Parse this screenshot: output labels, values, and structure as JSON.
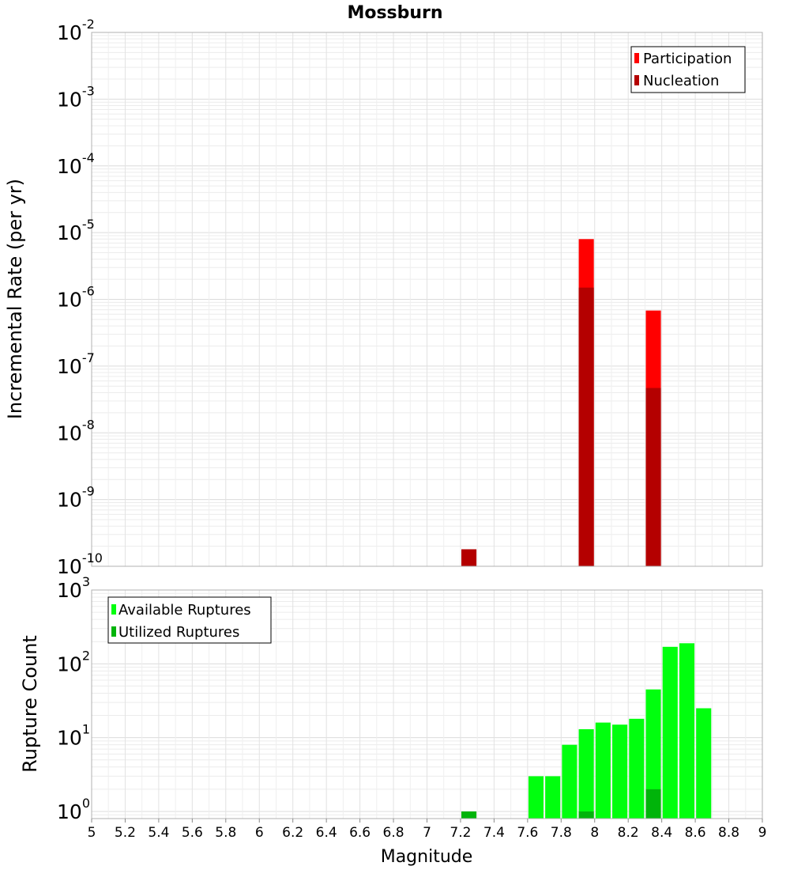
{
  "chart_data": [
    {
      "type": "bar",
      "title": "Mossburn",
      "ylabel": "Incremental Rate (per yr)",
      "xlabel": "",
      "yscale": "log",
      "xlim": [
        5,
        9
      ],
      "ylim": [
        1e-10,
        0.01
      ],
      "yticks": [
        {
          "base": "10",
          "exp": "-10",
          "value": 1e-10
        },
        {
          "base": "10",
          "exp": "-9",
          "value": 1e-09
        },
        {
          "base": "10",
          "exp": "-8",
          "value": 1e-08
        },
        {
          "base": "10",
          "exp": "-7",
          "value": 1e-07
        },
        {
          "base": "10",
          "exp": "-6",
          "value": 1e-06
        },
        {
          "base": "10",
          "exp": "-5",
          "value": 1e-05
        },
        {
          "base": "10",
          "exp": "-4",
          "value": 0.0001
        },
        {
          "base": "10",
          "exp": "-3",
          "value": 0.001
        },
        {
          "base": "10",
          "exp": "-2",
          "value": 0.01
        }
      ],
      "bar_width": 0.09,
      "grid": true,
      "legend_position": "top-right",
      "series": [
        {
          "name": "Participation",
          "color": "#ff0000",
          "x": [
            7.95,
            8.35
          ],
          "values": [
            8e-06,
            6.8e-07
          ]
        },
        {
          "name": "Nucleation",
          "color": "#b40000",
          "x": [
            7.25,
            7.95,
            8.35
          ],
          "values": [
            1.8e-10,
            1.5e-06,
            4.7e-08
          ]
        }
      ]
    },
    {
      "type": "bar",
      "title": "",
      "ylabel": "Rupture Count",
      "xlabel": "Magnitude",
      "yscale": "log",
      "xlim": [
        5,
        9
      ],
      "ylim": [
        0.8,
        1000
      ],
      "yticks": [
        {
          "base": "10",
          "exp": "0",
          "value": 1
        },
        {
          "base": "10",
          "exp": "1",
          "value": 10
        },
        {
          "base": "10",
          "exp": "2",
          "value": 100
        },
        {
          "base": "10",
          "exp": "3",
          "value": 1000
        }
      ],
      "xticks": [
        "5",
        "5.2",
        "5.4",
        "5.6",
        "5.8",
        "6",
        "6.2",
        "6.4",
        "6.6",
        "6.8",
        "7",
        "7.2",
        "7.4",
        "7.6",
        "7.8",
        "8",
        "8.2",
        "8.4",
        "8.6",
        "8.8",
        "9"
      ],
      "bar_width": 0.09,
      "grid": true,
      "legend_position": "top-left",
      "series": [
        {
          "name": "Available Ruptures",
          "color": "#00ff0e",
          "x": [
            7.65,
            7.75,
            7.85,
            7.95,
            8.05,
            8.15,
            8.25,
            8.35,
            8.45,
            8.55,
            8.65
          ],
          "values": [
            3,
            3,
            8,
            13,
            16,
            15,
            18,
            45,
            170,
            190,
            25
          ]
        },
        {
          "name": "Utilized Ruptures",
          "color": "#00b40a",
          "x": [
            7.25,
            7.95,
            8.35
          ],
          "values": [
            1,
            1,
            2
          ]
        }
      ]
    }
  ]
}
